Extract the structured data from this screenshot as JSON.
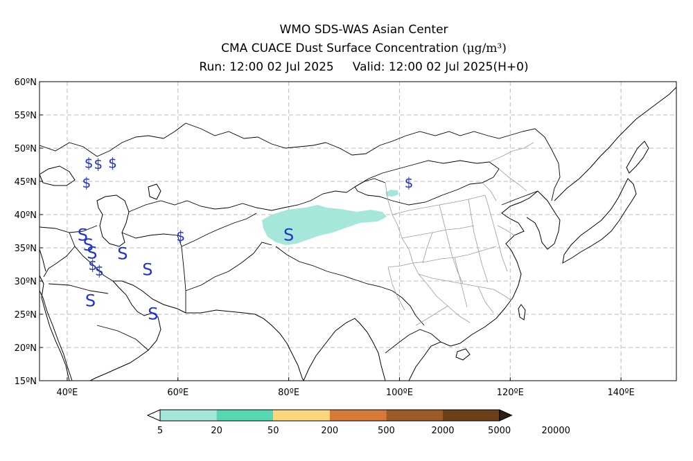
{
  "header": {
    "line1": "WMO SDS-WAS Asian Center",
    "line2_text": "CMA CUACE Dust Surface Concentration ",
    "line2_unit": "(μg/m³)",
    "run": "Run: 12:00 02 Jul 2025",
    "valid": "Valid: 12:00 02 Jul 2025(H+0)"
  },
  "map": {
    "lon_range": [
      35,
      150
    ],
    "lat_range": [
      15,
      60
    ],
    "lat_labels": [
      "15ºN",
      "20ºN",
      "25ºN",
      "30ºN",
      "35ºN",
      "40ºN",
      "45ºN",
      "50ºN",
      "55ºN",
      "60ºN"
    ],
    "lon_labels": [
      "40ºE",
      "60ºE",
      "80ºE",
      "100ºE",
      "120ºE",
      "140ºE"
    ],
    "grid": "dashed",
    "dust_region": "Tarim Basin plume",
    "markers": [
      {
        "symbol": "$",
        "lon": 43.9,
        "lat": 47.8
      },
      {
        "symbol": "$",
        "lon": 45.6,
        "lat": 47.6
      },
      {
        "symbol": "$",
        "lon": 48.2,
        "lat": 47.8
      },
      {
        "symbol": "$",
        "lon": 43.5,
        "lat": 44.8
      },
      {
        "symbol": "$",
        "lon": 101.7,
        "lat": 44.8
      },
      {
        "symbol": "$",
        "lon": 60.5,
        "lat": 36.8
      },
      {
        "symbol": "S",
        "lon": 42.8,
        "lat": 37.0
      },
      {
        "symbol": "S",
        "lon": 43.8,
        "lat": 35.5
      },
      {
        "symbol": "S",
        "lon": 44.5,
        "lat": 34.3
      },
      {
        "symbol": "S",
        "lon": 50.0,
        "lat": 34.2
      },
      {
        "symbol": "S",
        "lon": 54.5,
        "lat": 31.8
      },
      {
        "symbol": "$",
        "lon": 44.6,
        "lat": 32.4
      },
      {
        "symbol": "$",
        "lon": 45.8,
        "lat": 31.6
      },
      {
        "symbol": "S",
        "lon": 44.2,
        "lat": 27.1
      },
      {
        "symbol": "S",
        "lon": 55.5,
        "lat": 25.1
      },
      {
        "symbol": "S",
        "lon": 80.0,
        "lat": 37.0
      }
    ]
  },
  "legend": {
    "labels": [
      "5",
      "20",
      "50",
      "200",
      "500",
      "2000",
      "5000",
      "20000"
    ],
    "colors": [
      "#ffffff",
      "#a6e7dc",
      "#54d8b1",
      "#fbd77b",
      "#d87a38",
      "#9c5b24",
      "#6d3f19",
      "#301e10"
    ]
  }
}
